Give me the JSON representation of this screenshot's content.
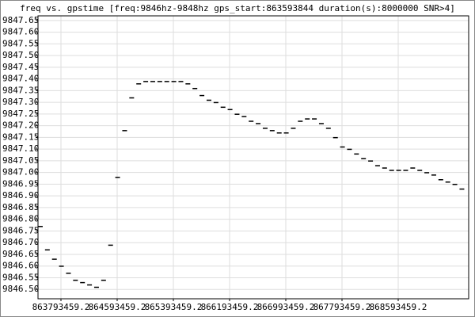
{
  "chart_data": {
    "type": "scatter",
    "title": "freq vs. gpstime [freq:9846hz-9848hz  gps_start:863593844  duration(s):8000000  SNR>4]",
    "color": "#000000",
    "grid": true,
    "xlim": [
      863466700,
      869596300
    ],
    "ylim": [
      9846.46,
      9847.67
    ],
    "xticks": [
      863793459.2,
      864593459.2,
      865393459.2,
      866193459.2,
      866993459.2,
      867793459.2,
      868593459.2
    ],
    "yticks": [
      {
        "value": 9846.5,
        "label": "9846.50"
      },
      9846.55,
      {
        "value": 9846.6,
        "label": "9846.60"
      },
      9846.65,
      {
        "value": 9846.7,
        "label": "9846.70"
      },
      9846.75,
      {
        "value": 9846.8,
        "label": "9846.80"
      },
      9846.85,
      {
        "value": 9846.9,
        "label": "9846.90"
      },
      9846.95,
      {
        "value": 9847,
        "label": "9847.00"
      },
      9847.05,
      {
        "value": 9847.1,
        "label": "9847.10"
      },
      9847.15,
      {
        "value": 9847.2,
        "label": "9847.20"
      },
      9847.25,
      {
        "value": 9847.3,
        "label": "9847.30"
      },
      9847.35,
      {
        "value": 9847.4,
        "label": "9847.40"
      },
      9847.45,
      {
        "value": 9847.5,
        "label": "9847.50"
      },
      9847.55,
      {
        "value": 9847.6,
        "label": "9847.60"
      },
      9847.65
    ],
    "x": [
      863500000,
      863600000,
      863700000,
      863800000,
      863900000,
      864000000,
      864100000,
      864200000,
      864300000,
      864400000,
      864500000,
      864600000,
      864700000,
      864800000,
      864900000,
      865000000,
      865100000,
      865200000,
      865300000,
      865400000,
      865500000,
      865600000,
      865700000,
      865800000,
      865900000,
      866000000,
      866100000,
      866200000,
      866300000,
      866400000,
      866500000,
      866600000,
      866700000,
      866800000,
      866900000,
      867000000,
      867100000,
      867200000,
      867300000,
      867400000,
      867500000,
      867600000,
      867700000,
      867800000,
      867900000,
      868000000,
      868100000,
      868200000,
      868300000,
      868400000,
      868500000,
      868600000,
      868700000,
      868800000,
      868900000,
      869000000,
      869100000,
      869200000,
      869300000,
      869400000,
      869500000
    ],
    "values": [
      9846.77,
      9846.67,
      9846.63,
      9846.6,
      9846.57,
      9846.54,
      9846.53,
      9846.52,
      9846.51,
      9846.54,
      9846.69,
      9846.98,
      9847.18,
      9847.32,
      9847.38,
      9847.39,
      9847.39,
      9847.39,
      9847.39,
      9847.39,
      9847.39,
      9847.38,
      9847.36,
      9847.33,
      9847.31,
      9847.3,
      9847.28,
      9847.27,
      9847.25,
      9847.24,
      9847.22,
      9847.21,
      9847.19,
      9847.18,
      9847.17,
      9847.17,
      9847.19,
      9847.22,
      9847.23,
      9847.23,
      9847.21,
      9847.19,
      9847.15,
      9847.11,
      9847.1,
      9847.08,
      9847.06,
      9847.05,
      9847.03,
      9847.02,
      9847.01,
      9847.01,
      9847.01,
      9847.02,
      9847.01,
      9847,
      9846.99,
      9846.97,
      9846.96,
      9846.95,
      9846.93
    ]
  }
}
